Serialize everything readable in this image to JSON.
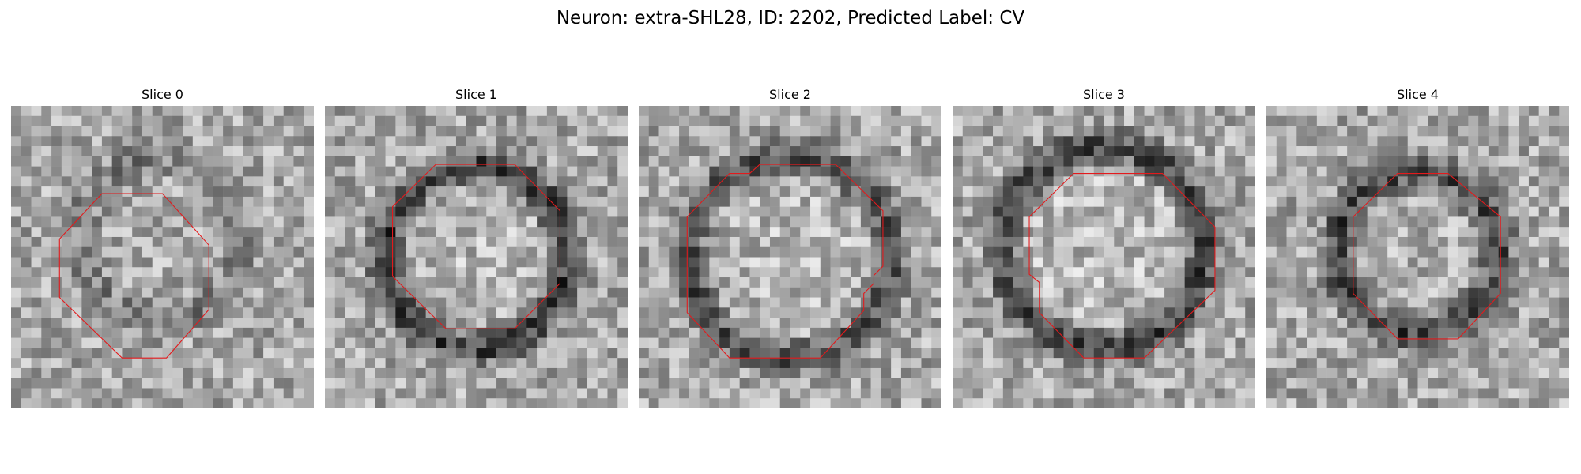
{
  "figure": {
    "title": "Neuron: extra-SHL28, ID: 2202, Predicted Label: CV"
  },
  "colors": {
    "contour": "#e31a1c",
    "background": "#ffffff"
  },
  "grid_size": 30,
  "slices": [
    {
      "title": "Slice 0",
      "blob": {
        "cx": 15,
        "cy": 13,
        "r": 8,
        "strength": 0.28,
        "hole": 0.05
      },
      "contour": "4.8,13.2 9,8.7 15,8.7 19.6,13.8 19.6,20.2 15.4,25 11,25 4.8,19"
    },
    {
      "title": "Slice 1",
      "blob": {
        "cx": 15,
        "cy": 15,
        "r": 9,
        "strength": 0.75,
        "hole": 0.3
      },
      "contour": "6.7,10 11,5.8 18.8,5.8 23.3,10.4 23.3,17.6 18.8,22.1 12,22.1 6.7,16.9"
    },
    {
      "title": "Slice 2",
      "blob": {
        "cx": 15,
        "cy": 15,
        "r": 10,
        "strength": 0.6,
        "hole": 0.28
      },
      "contour": "4.8,11 9,6.7 11,6.7 12,5.8 19.5,5.8 24.2,10.4 24.2,15.9 23.3,16.8 23.3,17.6 22.3,18.6 22.3,20.3 18,25 9,25 4.8,20.5"
    },
    {
      "title": "Slice 3",
      "blob": {
        "cx": 15,
        "cy": 14,
        "r": 10,
        "strength": 0.7,
        "hole": 0.35
      },
      "contour": "7.6,11 12,6.7 20.8,6.7 26,12 26,18.3 19,25 13,25 8.6,20.5 8.6,17.5 7.6,16.7"
    },
    {
      "title": "Slice 4",
      "blob": {
        "cx": 15,
        "cy": 14.5,
        "r": 8,
        "strength": 0.7,
        "hole": 0.15
      },
      "contour": "8.6,11 13,6.7 18,6.7 23.2,11 23.2,18.6 19,23.1 13,23.1 8.6,18.6"
    }
  ]
}
